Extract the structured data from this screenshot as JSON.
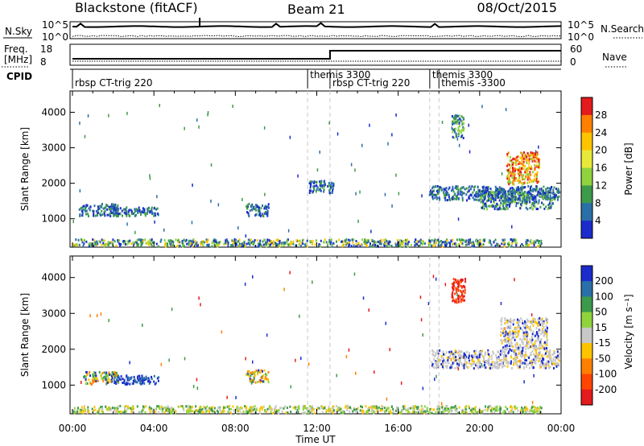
{
  "header": {
    "station": "Blackstone (fitACF)",
    "beam": "Beam 21",
    "date": "08/Oct/2015"
  },
  "noise_panel": {
    "left_label": "N.Sky",
    "right_label": "N.Search",
    "left_ticks": [
      "10^5",
      "10^0"
    ],
    "right_ticks": [
      "10^5",
      "10^0"
    ]
  },
  "freq_panel": {
    "left_label_1": "Freq.",
    "left_label_2": "[MHz]",
    "right_label": "Nave",
    "left_ticks": [
      "18",
      "8"
    ],
    "right_ticks": [
      "60",
      "0"
    ]
  },
  "cpid": {
    "label": "CPID",
    "segments": [
      {
        "name": "rbsp CT-trig 220",
        "start": 0.0,
        "row": 2
      },
      {
        "name": "themis 3300",
        "start": 11.55,
        "row": 1
      },
      {
        "name": "rbsp CT-trig 220",
        "start": 12.65,
        "row": 2
      },
      {
        "name": "themis 3300",
        "start": 17.55,
        "row": 1
      },
      {
        "name": "themis -3300",
        "start": 18.0,
        "row": 2
      }
    ]
  },
  "chart_data": [
    {
      "type": "heatmap",
      "panel": "power",
      "ylabel": "Slant Range [km]",
      "xlabel": "",
      "colorbar_label": "Power [dB]",
      "colorbar_ticks": [
        "28",
        "24",
        "20",
        "16",
        "12",
        "8",
        "4"
      ],
      "colorbar_colors": [
        "#e41a1c",
        "#ff7f00",
        "#ffc400",
        "#e8e83a",
        "#8fd43c",
        "#3d9a4a",
        "#2b6fa8",
        "#1a2ccc"
      ],
      "xlim": [
        0,
        24
      ],
      "ylim": [
        200,
        4600
      ],
      "yticks": [
        1000,
        2000,
        3000,
        4000
      ],
      "dashed_times": [
        11.55,
        12.65,
        17.55,
        18.0
      ],
      "regions": [
        {
          "t0": 0.0,
          "t1": 23.0,
          "r0": 250,
          "r1": 450,
          "level": "mixed"
        },
        {
          "t0": 0.3,
          "t1": 2.2,
          "r0": 1100,
          "r1": 1450,
          "level": "low"
        },
        {
          "t0": 1.8,
          "t1": 4.2,
          "r0": 1100,
          "r1": 1350,
          "level": "low"
        },
        {
          "t0": 8.5,
          "t1": 9.6,
          "r0": 1100,
          "r1": 1450,
          "level": "low"
        },
        {
          "t0": 11.6,
          "t1": 12.8,
          "r0": 1750,
          "r1": 2100,
          "level": "low"
        },
        {
          "t0": 17.5,
          "t1": 23.9,
          "r0": 1550,
          "r1": 1950,
          "level": "low"
        },
        {
          "t0": 18.6,
          "t1": 19.2,
          "r0": 3300,
          "r1": 3950,
          "level": "mid"
        },
        {
          "t0": 20.0,
          "t1": 23.6,
          "r0": 1300,
          "r1": 1800,
          "level": "mid"
        },
        {
          "t0": 21.3,
          "t1": 22.9,
          "r0": 2000,
          "r1": 2900,
          "level": "high"
        }
      ]
    },
    {
      "type": "heatmap",
      "panel": "velocity",
      "ylabel": "Slant Range [km]",
      "xlabel": "Time UT",
      "colorbar_label": "Velocity [m s⁻¹]",
      "colorbar_ticks": [
        "200",
        "100",
        "50",
        "15",
        "-15",
        "-50",
        "-100",
        "-200"
      ],
      "colorbar_colors": [
        "#1a2ccc",
        "#2b6fa8",
        "#3d9a4a",
        "#8fd43c",
        "#c8c8c8",
        "#ffc400",
        "#ff7f00",
        "#ff4500",
        "#e41a1c"
      ],
      "xlim": [
        0,
        24
      ],
      "xticks": [
        "00:00",
        "04:00",
        "08:00",
        "12:00",
        "16:00",
        "20:00",
        "00:00"
      ],
      "ylim": [
        200,
        4600
      ],
      "yticks": [
        1000,
        2000,
        3000,
        4000
      ],
      "dashed_times": [
        11.55,
        12.65,
        17.55,
        18.0
      ],
      "regions": [
        {
          "t0": 0.0,
          "t1": 23.0,
          "r0": 250,
          "r1": 450,
          "level": "ground"
        },
        {
          "t0": 0.5,
          "t1": 2.3,
          "r0": 1050,
          "r1": 1400,
          "level": "mixed"
        },
        {
          "t0": 2.0,
          "t1": 4.2,
          "r0": 1050,
          "r1": 1300,
          "level": "blue"
        },
        {
          "t0": 8.5,
          "t1": 9.6,
          "r0": 1100,
          "r1": 1450,
          "level": "mixed"
        },
        {
          "t0": 17.6,
          "t1": 23.9,
          "r0": 1500,
          "r1": 2000,
          "level": "grey"
        },
        {
          "t0": 21.0,
          "t1": 23.3,
          "r0": 2000,
          "r1": 2900,
          "level": "grey"
        },
        {
          "t0": 18.6,
          "t1": 19.3,
          "r0": 3300,
          "r1": 4000,
          "level": "red"
        }
      ]
    }
  ]
}
